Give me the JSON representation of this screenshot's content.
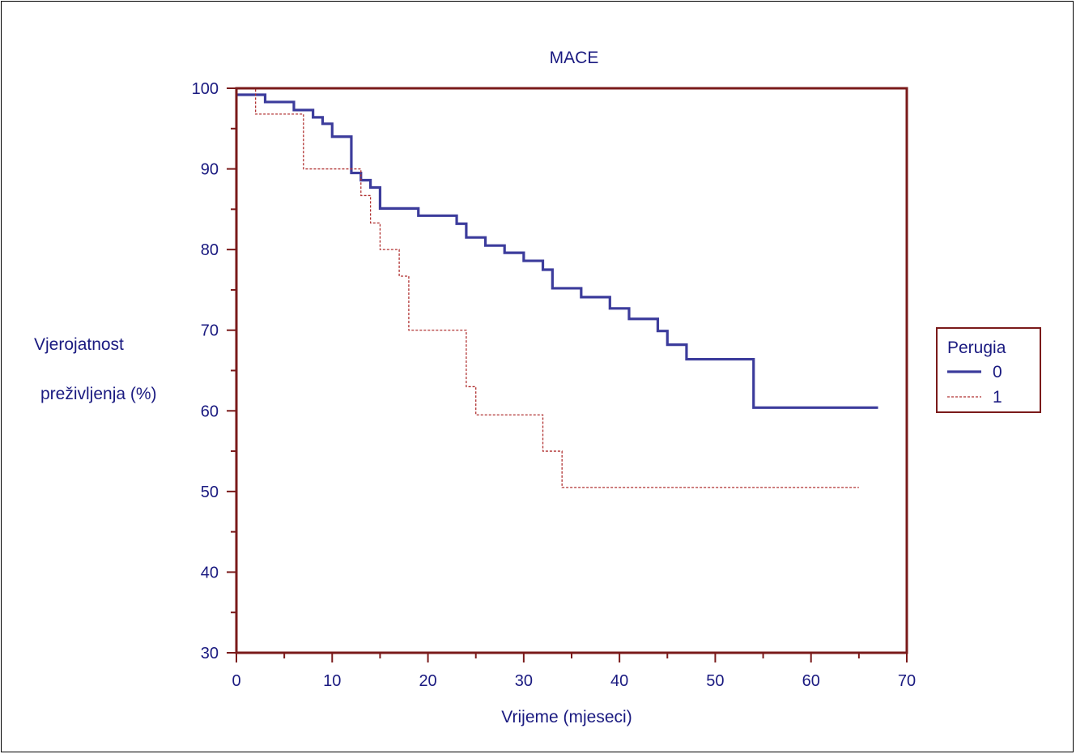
{
  "chart_data": {
    "type": "line",
    "subtype": "kaplan-meier",
    "title": "MACE",
    "xlabel": "Vrijeme (mjeseci)",
    "ylabel_lines": [
      "Vjerojatnost",
      "preživljenja (%)"
    ],
    "xlim": [
      0,
      70
    ],
    "ylim": [
      30,
      100
    ],
    "xticks": [
      0,
      10,
      20,
      30,
      40,
      50,
      60,
      70
    ],
    "yticks": [
      30,
      40,
      50,
      60,
      70,
      80,
      90,
      100
    ],
    "grid": false,
    "legend": {
      "title": "Perugia",
      "position": "right"
    },
    "colors": {
      "axis": "#7a1a1a",
      "text": "#1a1a80"
    },
    "series": [
      {
        "name": "0",
        "color": "#3c3c9c",
        "style": "solid",
        "points": [
          [
            0,
            99.2
          ],
          [
            3,
            98.3
          ],
          [
            6,
            97.3
          ],
          [
            8,
            96.4
          ],
          [
            9,
            95.6
          ],
          [
            10,
            94.0
          ],
          [
            12,
            89.5
          ],
          [
            13,
            88.6
          ],
          [
            14,
            87.7
          ],
          [
            15,
            85.1
          ],
          [
            19,
            84.2
          ],
          [
            23,
            83.2
          ],
          [
            24,
            81.5
          ],
          [
            26,
            80.5
          ],
          [
            28,
            79.6
          ],
          [
            30,
            78.6
          ],
          [
            32,
            77.5
          ],
          [
            33,
            75.2
          ],
          [
            36,
            74.1
          ],
          [
            39,
            72.7
          ],
          [
            41,
            71.4
          ],
          [
            44,
            69.9
          ],
          [
            45,
            68.2
          ],
          [
            47,
            66.4
          ],
          [
            54,
            60.4
          ],
          [
            67,
            60.4
          ]
        ]
      },
      {
        "name": "1",
        "color": "#b03030",
        "style": "dashed",
        "points": [
          [
            0,
            100
          ],
          [
            2,
            96.8
          ],
          [
            7,
            90.0
          ],
          [
            13,
            86.7
          ],
          [
            14,
            83.3
          ],
          [
            15,
            80.0
          ],
          [
            17,
            76.7
          ],
          [
            18,
            70.0
          ],
          [
            24,
            63.0
          ],
          [
            25,
            59.5
          ],
          [
            32,
            55.0
          ],
          [
            34,
            50.5
          ],
          [
            65,
            50.5
          ]
        ]
      }
    ]
  }
}
